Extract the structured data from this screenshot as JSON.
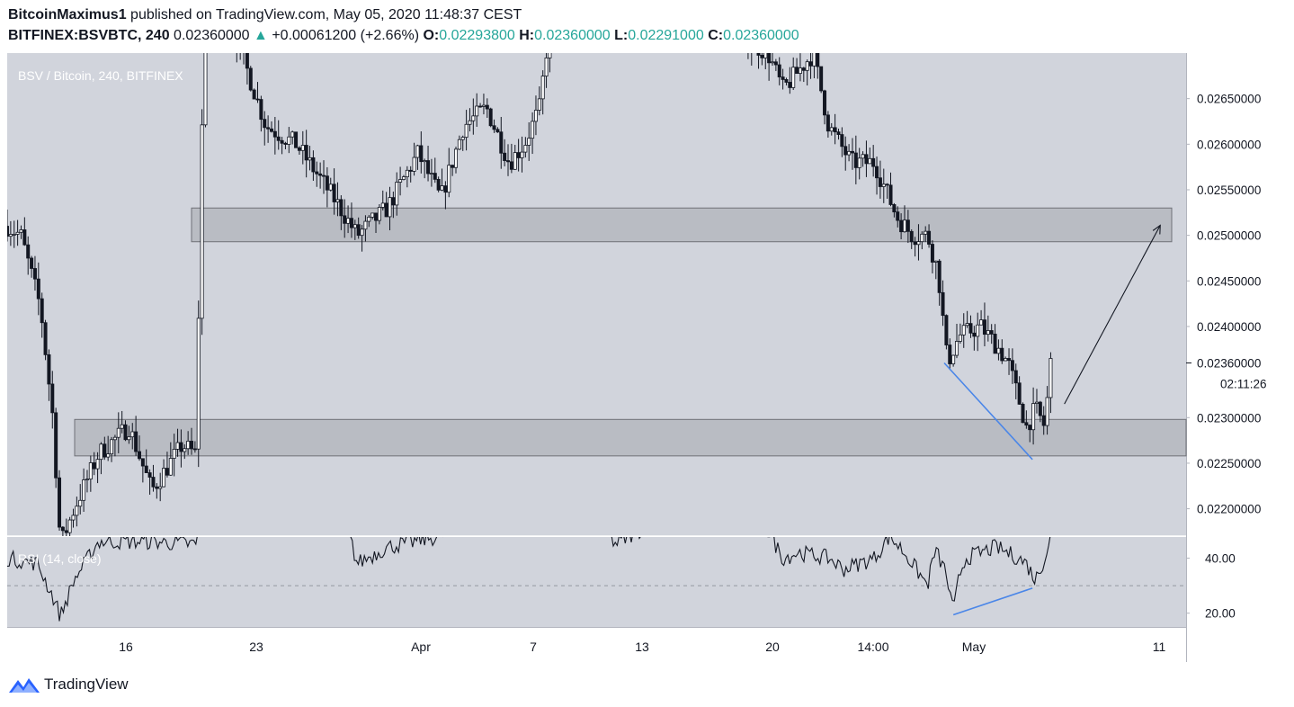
{
  "header": {
    "author": "BitcoinMaximus1",
    "published_text": "published on TradingView.com, May 05, 2020 11:48:37 CEST",
    "symbol": "BITFINEX:BSVBTC, 240",
    "last": "0.02360000",
    "change": "+0.00061200 (+2.66%)",
    "open_label": "O:",
    "open": "0.02293800",
    "high_label": "H:",
    "high": "0.02360000",
    "low_label": "L:",
    "low": "0.02291000",
    "close_label": "C:",
    "close": "0.02360000"
  },
  "chart_label": "BSV / Bitcoin, 240, BITFINEX",
  "rsi_label": "RSI (14, close)",
  "price_tag": "0.02360000",
  "countdown": "02:11:26",
  "footer": {
    "brand": "TradingView"
  },
  "colors": {
    "pane_bg": "#d1d4dc",
    "zone_fill": "#b5b7be",
    "zone_border": "#6f7177",
    "candle": "#131722",
    "annotation_line": "#4a86e8",
    "up": "#26a69a"
  },
  "chart_data": [
    {
      "type": "candlestick",
      "title": "BSV / Bitcoin, 240, BITFINEX",
      "xlabel": "",
      "ylabel": "",
      "ylim": [
        0.0217,
        0.027
      ],
      "y_ticks": [
        "0.02650000",
        "0.02600000",
        "0.02550000",
        "0.02500000",
        "0.02450000",
        "0.02400000",
        "0.02300000",
        "0.02250000",
        "0.02200000"
      ],
      "x_ticks": [
        "16",
        "23",
        "Apr",
        "7",
        "13",
        "20",
        "14:00",
        "May",
        "11"
      ],
      "last_price": 0.0236,
      "resistance_zone": [
        0.02493,
        0.0253
      ],
      "support_zone": [
        0.02258,
        0.02298
      ],
      "price_path": [
        {
          "x": 0,
          "y": 0.0251
        },
        {
          "x": 0.9,
          "y": 0.025
        },
        {
          "x": 2.2,
          "y": 0.0242
        },
        {
          "x": 3.0,
          "y": 0.023
        },
        {
          "x": 3.5,
          "y": 0.0216
        },
        {
          "x": 4.4,
          "y": 0.022
        },
        {
          "x": 6.0,
          "y": 0.0226
        },
        {
          "x": 8.0,
          "y": 0.0229
        },
        {
          "x": 9.5,
          "y": 0.0222
        },
        {
          "x": 11.5,
          "y": 0.0227
        },
        {
          "x": 12.4,
          "y": 0.0226
        },
        {
          "x": 12.7,
          "y": 0.0252
        },
        {
          "x": 13.0,
          "y": 0.028
        },
        {
          "x": 15.0,
          "y": 0.0272
        },
        {
          "x": 17.0,
          "y": 0.0262
        },
        {
          "x": 19.0,
          "y": 0.026
        },
        {
          "x": 21.5,
          "y": 0.0254
        },
        {
          "x": 23.0,
          "y": 0.025
        },
        {
          "x": 25.0,
          "y": 0.0253
        },
        {
          "x": 27.0,
          "y": 0.0259
        },
        {
          "x": 28.5,
          "y": 0.0254
        },
        {
          "x": 30.0,
          "y": 0.0262
        },
        {
          "x": 31.5,
          "y": 0.0264
        },
        {
          "x": 33.0,
          "y": 0.0258
        },
        {
          "x": 34.0,
          "y": 0.026
        },
        {
          "x": 35.0,
          "y": 0.0264
        },
        {
          "x": 36.0,
          "y": 0.0278
        },
        {
          "x": 38.0,
          "y": 0.0282
        },
        {
          "x": 40.0,
          "y": 0.028
        },
        {
          "x": 42.0,
          "y": 0.0276
        },
        {
          "x": 44.0,
          "y": 0.0278
        },
        {
          "x": 46.0,
          "y": 0.0276
        },
        {
          "x": 48.0,
          "y": 0.0272
        },
        {
          "x": 50.0,
          "y": 0.027
        },
        {
          "x": 51.0,
          "y": 0.0266
        },
        {
          "x": 52.0,
          "y": 0.0268
        },
        {
          "x": 53.0,
          "y": 0.027
        },
        {
          "x": 54.0,
          "y": 0.0262
        },
        {
          "x": 55.5,
          "y": 0.0258
        },
        {
          "x": 57.0,
          "y": 0.0258
        },
        {
          "x": 58.5,
          "y": 0.0252
        },
        {
          "x": 59.5,
          "y": 0.025
        },
        {
          "x": 60.5,
          "y": 0.025
        },
        {
          "x": 61.2,
          "y": 0.0246
        },
        {
          "x": 61.8,
          "y": 0.0236
        },
        {
          "x": 62.6,
          "y": 0.0239
        },
        {
          "x": 64.0,
          "y": 0.024
        },
        {
          "x": 65.0,
          "y": 0.0238
        },
        {
          "x": 65.8,
          "y": 0.0236
        },
        {
          "x": 66.5,
          "y": 0.0232
        },
        {
          "x": 67.0,
          "y": 0.0229
        },
        {
          "x": 67.6,
          "y": 0.0231
        },
        {
          "x": 68.2,
          "y": 0.0229
        },
        {
          "x": 68.6,
          "y": 0.0236
        }
      ],
      "x_range": [
        0,
        77.5
      ],
      "annotations": [
        {
          "type": "line",
          "from": {
            "x": 61.6,
            "y": 0.0236
          },
          "to": {
            "x": 67.4,
            "y": 0.02254
          }
        },
        {
          "type": "arrow",
          "from": {
            "x": 69.5,
            "y": 0.02315
          },
          "to": {
            "x": 75.8,
            "y": 0.02511
          }
        }
      ]
    },
    {
      "type": "line",
      "title": "RSI (14, close)",
      "ylim": [
        15,
        48
      ],
      "y_ticks": [
        "40.00",
        "20.00"
      ],
      "reference_line": 30,
      "rsi_path": [
        {
          "x": 0,
          "y": 40
        },
        {
          "x": 2.0,
          "y": 38
        },
        {
          "x": 3.0,
          "y": 26
        },
        {
          "x": 3.5,
          "y": 19
        },
        {
          "x": 4.4,
          "y": 32
        },
        {
          "x": 6.0,
          "y": 46
        },
        {
          "x": 9.5,
          "y": 46
        },
        {
          "x": 12.4,
          "y": 45
        },
        {
          "x": 13.0,
          "y": 60
        },
        {
          "x": 22.0,
          "y": 58
        },
        {
          "x": 23.0,
          "y": 38
        },
        {
          "x": 25.0,
          "y": 44
        },
        {
          "x": 28.5,
          "y": 48
        },
        {
          "x": 30.0,
          "y": 58
        },
        {
          "x": 38.0,
          "y": 60
        },
        {
          "x": 40.0,
          "y": 45
        },
        {
          "x": 44.0,
          "y": 58
        },
        {
          "x": 50.0,
          "y": 50
        },
        {
          "x": 51.0,
          "y": 40
        },
        {
          "x": 52.0,
          "y": 42
        },
        {
          "x": 54.0,
          "y": 40
        },
        {
          "x": 55.0,
          "y": 36
        },
        {
          "x": 57.0,
          "y": 40
        },
        {
          "x": 58.0,
          "y": 48
        },
        {
          "x": 59.0,
          "y": 42
        },
        {
          "x": 60.5,
          "y": 30
        },
        {
          "x": 61.0,
          "y": 43
        },
        {
          "x": 61.7,
          "y": 35
        },
        {
          "x": 62.2,
          "y": 20
        },
        {
          "x": 62.6,
          "y": 34
        },
        {
          "x": 63.0,
          "y": 40
        },
        {
          "x": 65.0,
          "y": 44
        },
        {
          "x": 66.5,
          "y": 40
        },
        {
          "x": 67.0,
          "y": 38
        },
        {
          "x": 67.6,
          "y": 32
        },
        {
          "x": 68.2,
          "y": 40
        },
        {
          "x": 68.6,
          "y": 48
        }
      ],
      "annotations": [
        {
          "type": "line",
          "from": {
            "x": 62.2,
            "y": 19.4
          },
          "to": {
            "x": 67.4,
            "y": 29.1
          }
        }
      ]
    }
  ]
}
